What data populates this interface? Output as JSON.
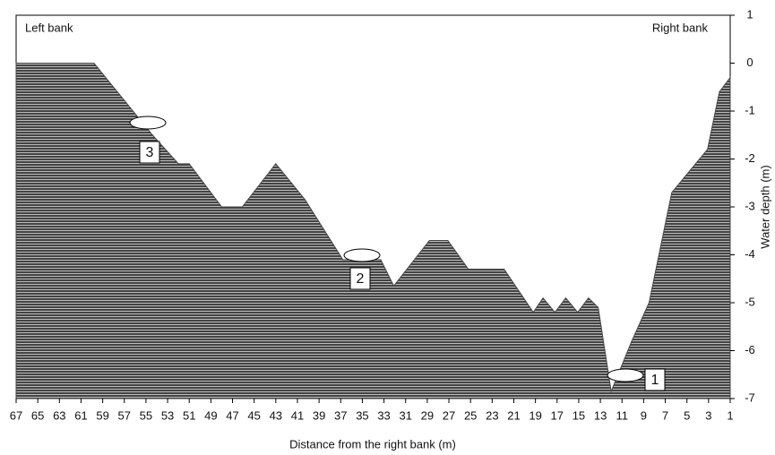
{
  "chart_data": {
    "type": "area",
    "x_label": "Distance from the right bank (m)",
    "y_label": "Water depth (m)",
    "left_label": "Left bank",
    "right_label": "Right bank",
    "annotations": [
      "3",
      "2",
      "1"
    ],
    "color": "#444444",
    "x": [
      67,
      59.8,
      54.4,
      52,
      51,
      48,
      46.1,
      43,
      40.3,
      36.8,
      33.3,
      32.1,
      28.8,
      27.1,
      25.2,
      21.9,
      19.2,
      18.3,
      17.2,
      16.2,
      15.1,
      14.1,
      13.2,
      12,
      10.1,
      8.5,
      6.4,
      3.1,
      2,
      1
    ],
    "values": [
      0,
      0,
      -1.5,
      -2.1,
      -2.1,
      -3,
      -3,
      -2.1,
      -2.85,
      -4.1,
      -4.1,
      -4.65,
      -3.7,
      -3.7,
      -4.3,
      -4.3,
      -5.2,
      -4.9,
      -5.2,
      -4.9,
      -5.2,
      -4.9,
      -5.1,
      -6.85,
      -5.8,
      -5,
      -2.7,
      -1.8,
      -0.6,
      -0.3
    ],
    "xlim": [
      67,
      1
    ],
    "ylim": [
      -7,
      1
    ],
    "xticks": [
      67,
      65,
      63,
      61,
      59,
      57,
      55,
      53,
      51,
      49,
      47,
      45,
      43,
      41,
      39,
      37,
      35,
      33,
      31,
      29,
      27,
      25,
      23,
      21,
      19,
      17,
      15,
      13,
      11,
      9,
      7,
      5,
      3,
      1
    ],
    "yticks": [
      -7,
      -6,
      -5,
      -4,
      -3,
      -2,
      -1,
      0,
      1
    ]
  }
}
